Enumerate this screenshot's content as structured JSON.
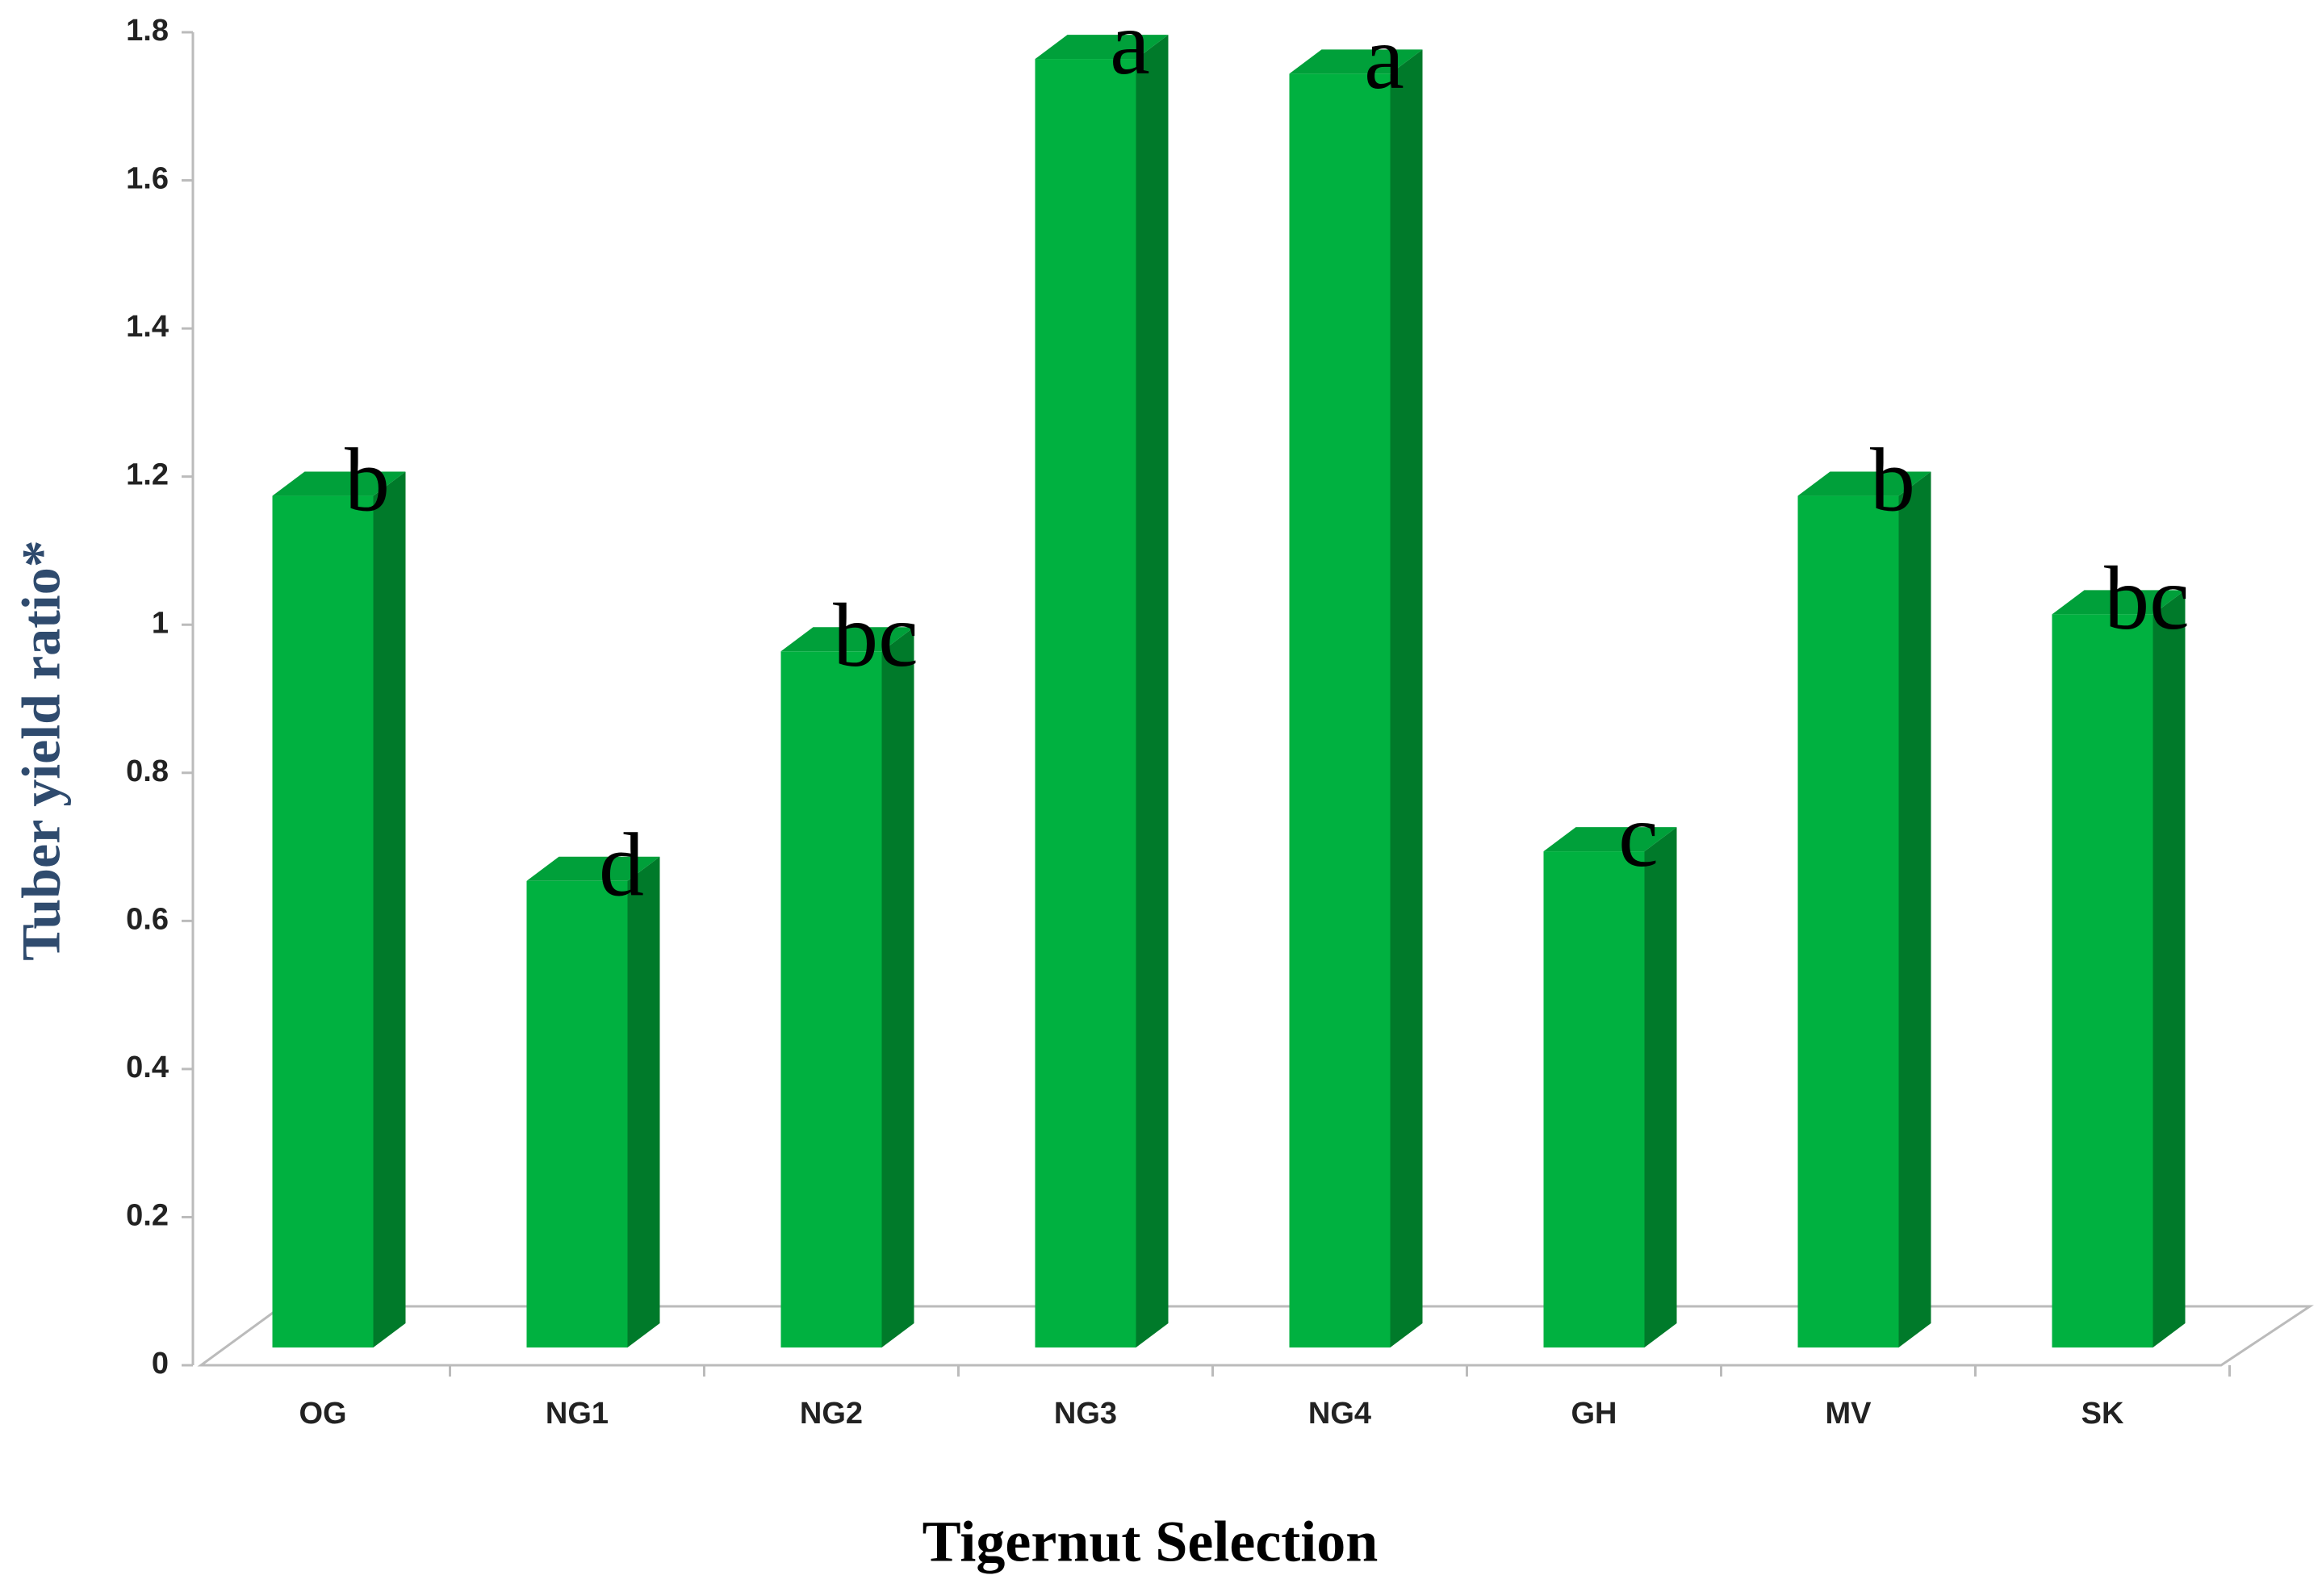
{
  "chart_data": {
    "type": "bar3d",
    "x_label": "Tigernut Selection",
    "y_label": "Tuber yield ratio*",
    "categories": [
      "OG",
      "NG1",
      "NG2",
      "NG3",
      "NG4",
      "GH",
      "MV",
      "SK"
    ],
    "values": [
      1.15,
      0.63,
      0.94,
      1.74,
      1.72,
      0.67,
      1.15,
      0.99
    ],
    "annotations": [
      "b",
      "d",
      "bc",
      "a",
      "a",
      "c",
      "b",
      "bc"
    ],
    "color": "#00b140",
    "ylim": [
      0,
      1.8
    ],
    "yticks": [
      0,
      0.2,
      0.4,
      0.6,
      0.8,
      1,
      1.2,
      1.4,
      1.6,
      1.8
    ]
  }
}
